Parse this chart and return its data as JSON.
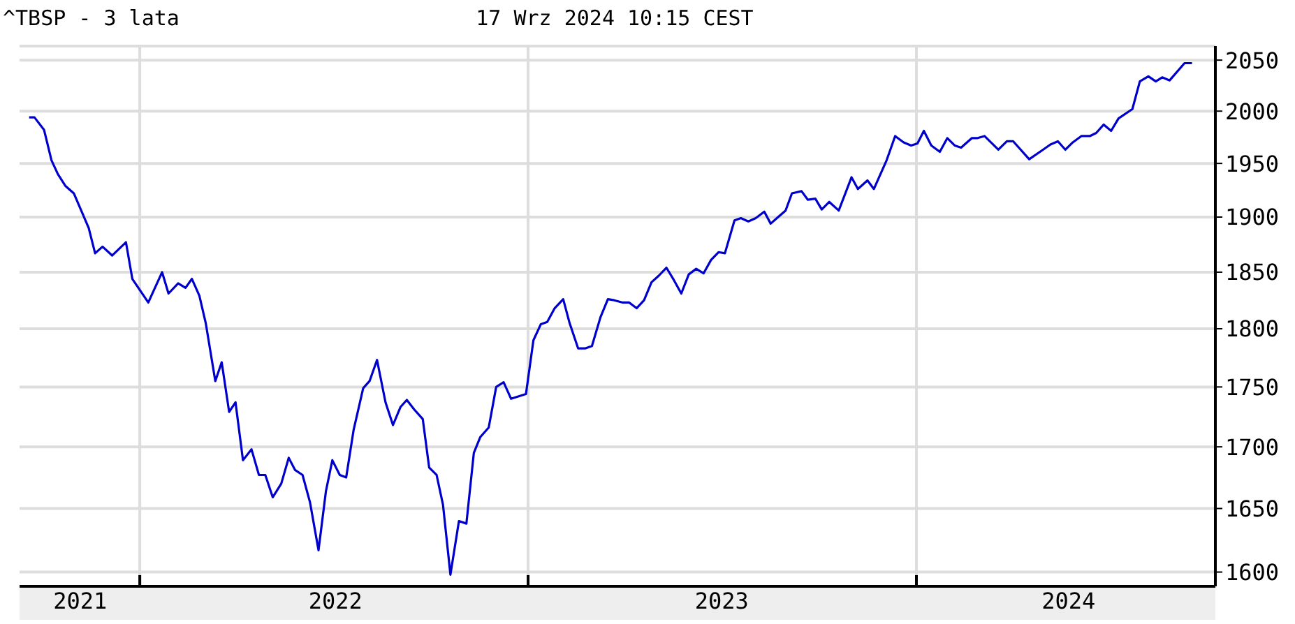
{
  "chart_data": {
    "type": "line",
    "title": "^TBSP - 3 lata",
    "subtitle": "17 Wrz 2024 10:15 CEST",
    "log": true,
    "grid": true,
    "marker": "none",
    "line_style": "solid",
    "xlim": [
      "2021-09-10",
      "2024-10-08"
    ],
    "xticks": [
      {
        "value": "2021-11-06",
        "label": "2021"
      },
      {
        "value": "2022-01-01",
        "label": null
      },
      {
        "value": "2022-07-04",
        "label": "2022"
      },
      {
        "value": "2023-01-01",
        "label": null
      },
      {
        "value": "2023-07-02",
        "label": "2023"
      },
      {
        "value": "2024-01-01",
        "label": null
      },
      {
        "value": "2024-05-23",
        "label": "2024"
      }
    ],
    "ylim": [
      1589,
      2064
    ],
    "yticks": [
      1600,
      1650,
      1700,
      1750,
      1800,
      1850,
      1900,
      1950,
      2000,
      2050
    ],
    "x": [
      "2021-09-19",
      "2021-09-24",
      "2021-10-03",
      "2021-10-10",
      "2021-10-16",
      "2021-10-23",
      "2021-10-31",
      "2021-11-14",
      "2021-11-20",
      "2021-11-27",
      "2021-12-06",
      "2021-12-19",
      "2021-12-25",
      "2022-01-09",
      "2022-01-22",
      "2022-01-28",
      "2022-02-06",
      "2022-02-13",
      "2022-02-19",
      "2022-02-26",
      "2022-03-04",
      "2022-03-13",
      "2022-03-19",
      "2022-03-26",
      "2022-04-01",
      "2022-04-08",
      "2022-04-16",
      "2022-04-23",
      "2022-04-29",
      "2022-05-06",
      "2022-05-14",
      "2022-05-21",
      "2022-05-27",
      "2022-06-03",
      "2022-06-10",
      "2022-06-18",
      "2022-06-25",
      "2022-07-01",
      "2022-07-08",
      "2022-07-14",
      "2022-07-21",
      "2022-07-30",
      "2022-08-05",
      "2022-08-12",
      "2022-08-20",
      "2022-08-27",
      "2022-09-03",
      "2022-09-09",
      "2022-09-16",
      "2022-09-24",
      "2022-09-30",
      "2022-10-07",
      "2022-10-13",
      "2022-10-20",
      "2022-10-28",
      "2022-11-04",
      "2022-11-11",
      "2022-11-17",
      "2022-11-25",
      "2022-12-02",
      "2022-12-09",
      "2022-12-16",
      "2022-12-30",
      "2023-01-06",
      "2023-01-13",
      "2023-01-19",
      "2023-01-26",
      "2023-02-03",
      "2023-02-09",
      "2023-02-17",
      "2023-02-24",
      "2023-03-02",
      "2023-03-10",
      "2023-03-17",
      "2023-03-23",
      "2023-03-31",
      "2023-04-06",
      "2023-04-13",
      "2023-04-20",
      "2023-04-27",
      "2023-05-04",
      "2023-05-11",
      "2023-05-18",
      "2023-05-25",
      "2023-06-01",
      "2023-06-08",
      "2023-06-15",
      "2023-06-22",
      "2023-06-29",
      "2023-07-05",
      "2023-07-14",
      "2023-07-20",
      "2023-07-27",
      "2023-08-03",
      "2023-08-11",
      "2023-08-17",
      "2023-08-24",
      "2023-08-31",
      "2023-09-06",
      "2023-09-15",
      "2023-09-21",
      "2023-09-28",
      "2023-10-04",
      "2023-10-11",
      "2023-10-20",
      "2023-11-01",
      "2023-11-07",
      "2023-11-16",
      "2023-11-22",
      "2023-12-04",
      "2023-12-12",
      "2023-12-20",
      "2023-12-27",
      "2024-01-02",
      "2024-01-08",
      "2024-01-15",
      "2024-01-23",
      "2024-01-30",
      "2024-02-06",
      "2024-02-12",
      "2024-02-22",
      "2024-02-27",
      "2024-03-05",
      "2024-03-18",
      "2024-03-26",
      "2024-04-01",
      "2024-04-16",
      "2024-04-29",
      "2024-05-06",
      "2024-05-13",
      "2024-05-20",
      "2024-05-27",
      "2024-06-04",
      "2024-06-12",
      "2024-06-18",
      "2024-06-25",
      "2024-07-02",
      "2024-07-09",
      "2024-07-22",
      "2024-07-29",
      "2024-08-06",
      "2024-08-13",
      "2024-08-19",
      "2024-08-26",
      "2024-09-09",
      "2024-09-16"
    ],
    "series": [
      {
        "color": "#0000cc",
        "values": [
          1994,
          1994,
          1982,
          1953,
          1940,
          1929,
          1922,
          1890,
          1867,
          1873,
          1865,
          1877,
          1844,
          1823,
          1850,
          1831,
          1840,
          1836,
          1844,
          1829,
          1805,
          1755,
          1771,
          1729,
          1737,
          1689,
          1698,
          1677,
          1677,
          1659,
          1670,
          1691,
          1681,
          1677,
          1655,
          1617,
          1664,
          1689,
          1677,
          1675,
          1714,
          1749,
          1755,
          1773,
          1737,
          1718,
          1733,
          1739,
          1731,
          1723,
          1683,
          1677,
          1653,
          1598,
          1640,
          1638,
          1695,
          1708,
          1716,
          1750,
          1754,
          1740,
          1744,
          1790,
          1804,
          1806,
          1818,
          1826,
          1805,
          1783,
          1783,
          1785,
          1810,
          1826,
          1825,
          1823,
          1823,
          1818,
          1825,
          1841,
          1847,
          1854,
          1843,
          1831,
          1848,
          1853,
          1849,
          1861,
          1868,
          1867,
          1897,
          1899,
          1896,
          1899,
          1905,
          1894,
          1900,
          1906,
          1922,
          1924,
          1916,
          1917,
          1907,
          1914,
          1906,
          1937,
          1926,
          1934,
          1926,
          1953,
          1976,
          1970,
          1967,
          1969,
          1981,
          1967,
          1961,
          1974,
          1967,
          1965,
          1974,
          1974,
          1976,
          1963,
          1971,
          1971,
          1954,
          1963,
          1968,
          1971,
          1963,
          1970,
          1976,
          1976,
          1979,
          1987,
          1981,
          1993,
          2002,
          2029,
          2034,
          2029,
          2033,
          2030,
          2047,
          2047
        ]
      }
    ]
  }
}
